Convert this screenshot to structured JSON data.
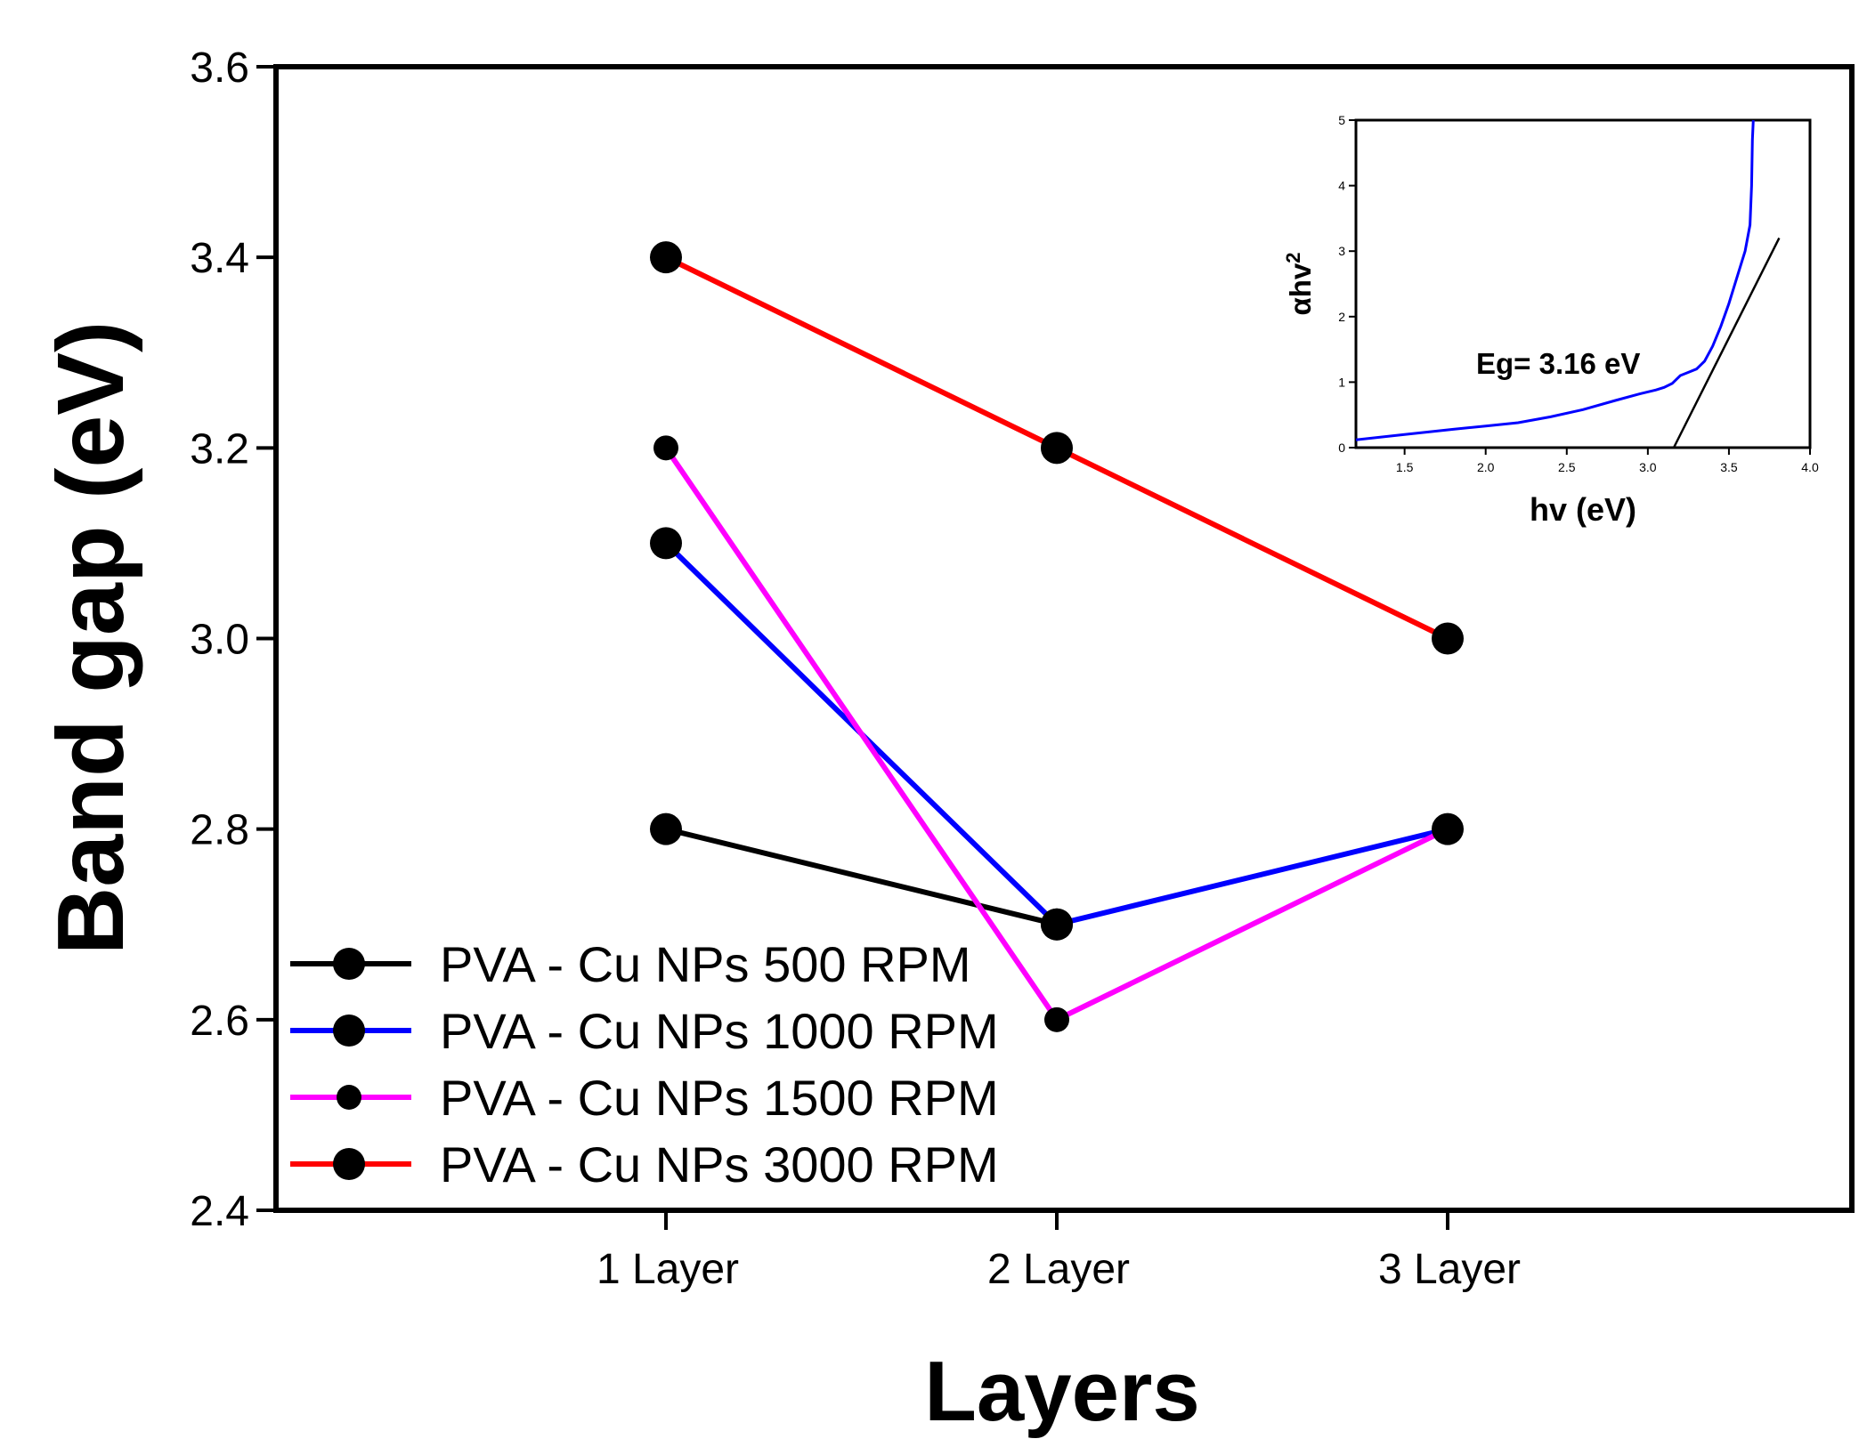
{
  "chart_data": {
    "type": "line",
    "title": "",
    "xlabel": "Layers",
    "ylabel": "Band gap (eV)",
    "categories": [
      "1 Layer",
      "2 Layer",
      "3 Layer"
    ],
    "ylim": [
      2.4,
      3.6
    ],
    "yticks": [
      2.4,
      2.6,
      2.8,
      3.0,
      3.2,
      3.4,
      3.6
    ],
    "ytick_labels": [
      "2.4",
      "2.6",
      "2.8",
      "3.0",
      "3.2",
      "3.4",
      "3.6"
    ],
    "grid": false,
    "legend_position": "bottom-left",
    "series": [
      {
        "name": "PVA - Cu NPs 500 RPM",
        "color": "#000000",
        "marker": "large",
        "values": [
          2.8,
          2.7,
          null
        ]
      },
      {
        "name": "PVA - Cu NPs 1000 RPM",
        "color": "#0000ff",
        "marker": "large",
        "values": [
          3.1,
          2.7,
          2.8
        ]
      },
      {
        "name": "PVA - Cu NPs 1500 RPM",
        "color": "#ff00ff",
        "marker": "small",
        "values": [
          3.2,
          2.6,
          2.8
        ]
      },
      {
        "name": "PVA - Cu NPs 3000 RPM",
        "color": "#ff0000",
        "marker": "large",
        "values": [
          3.4,
          3.2,
          3.0
        ]
      }
    ],
    "inset": {
      "type": "line",
      "xlabel": "hv (eV)",
      "ylabel_main": "αhv",
      "ylabel_sup": "2",
      "xlim": [
        1.2,
        4.0
      ],
      "ylim": [
        0,
        5
      ],
      "xticks": [
        1.5,
        2.0,
        2.5,
        3.0,
        3.5,
        4.0
      ],
      "xtick_labels": [
        "1.5",
        "2.0",
        "2.5",
        "3.0",
        "3.5",
        "4.0"
      ],
      "yticks": [
        0,
        1,
        2,
        3,
        4,
        5
      ],
      "ytick_labels": [
        "0",
        "1",
        "2",
        "3",
        "4",
        "5"
      ],
      "annotation": "Eg= 3.16 eV",
      "curve_color": "#0000ff",
      "fit_color": "#000000",
      "curve": {
        "x": [
          1.2,
          1.5,
          1.8,
          2.0,
          2.2,
          2.4,
          2.6,
          2.8,
          2.95,
          3.05,
          3.1,
          3.15,
          3.2,
          3.25,
          3.3,
          3.35,
          3.4,
          3.45,
          3.5,
          3.55,
          3.6,
          3.63,
          3.64,
          3.645,
          3.65
        ],
        "y": [
          0.12,
          0.2,
          0.28,
          0.33,
          0.38,
          0.47,
          0.58,
          0.72,
          0.82,
          0.88,
          0.92,
          0.98,
          1.1,
          1.15,
          1.2,
          1.32,
          1.55,
          1.85,
          2.2,
          2.6,
          3.0,
          3.4,
          4.0,
          4.7,
          5.0
        ]
      },
      "fit_line": {
        "x": [
          3.16,
          3.81
        ],
        "y": [
          0,
          3.2
        ]
      }
    }
  }
}
